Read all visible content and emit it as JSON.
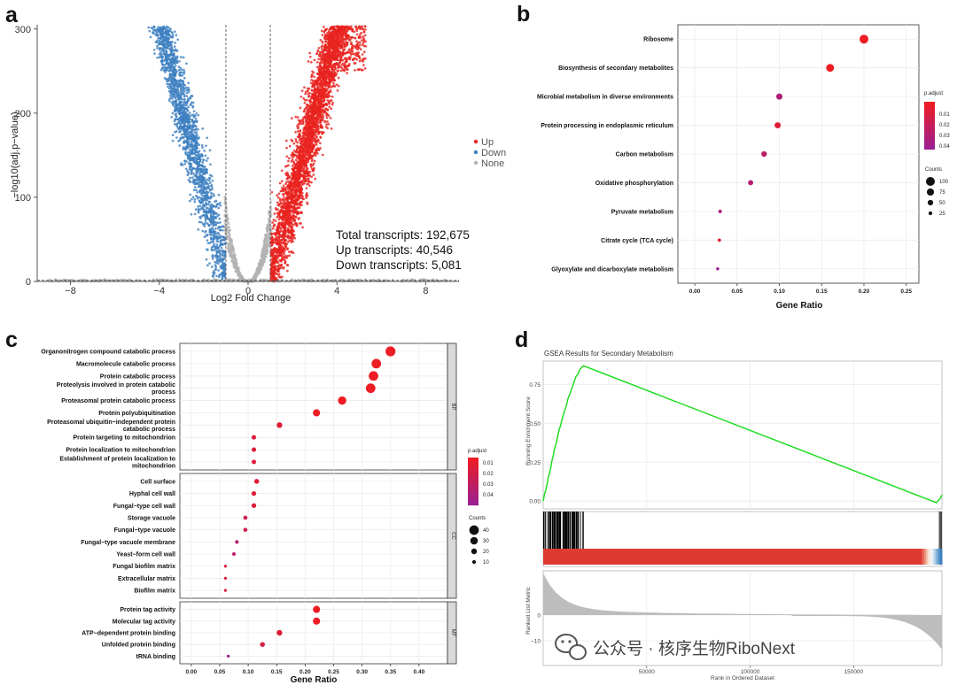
{
  "panels": {
    "a": "a",
    "b": "b",
    "c": "c",
    "d": "d"
  },
  "colors": {
    "up": "#e8231f",
    "down": "#3d7fc0",
    "none": "#b3b3b3",
    "padj_low": "#ee1c24",
    "padj_high": "#9b1f8f",
    "gsea_line": "#22dd22",
    "grid": "#ebebeb"
  },
  "chart_data": [
    {
      "id": "a",
      "type": "scatter",
      "subtype": "volcano",
      "title": "",
      "xlabel": "Log2 Fold Change",
      "ylabel": "−log10(adj.p−value)",
      "xlim": [
        -9.5,
        9.5
      ],
      "ylim": [
        0,
        305
      ],
      "xticks": [
        "−8",
        "−4",
        "0",
        "4",
        "8"
      ],
      "yticks": [
        "0",
        "100",
        "200",
        "300"
      ],
      "thresholds": {
        "log2fc": [
          -1,
          1
        ]
      },
      "legend": {
        "position": "right",
        "entries": [
          "Up",
          "Down",
          "None"
        ]
      },
      "annotation": [
        "Total transcripts: 192,675",
        "Up transcripts: 40,546",
        "Down transcripts: 5,081"
      ],
      "series": [
        {
          "name": "Up",
          "trend": [
            [
              1.0,
              0
            ],
            [
              1.5,
              40
            ],
            [
              2.0,
              95
            ],
            [
              2.5,
              150
            ],
            [
              3.0,
              205
            ],
            [
              3.5,
              255
            ],
            [
              4.0,
              300
            ]
          ]
        },
        {
          "name": "Down",
          "trend": [
            [
              -1.0,
              0
            ],
            [
              -1.5,
              40
            ],
            [
              -2.0,
              95
            ],
            [
              -2.5,
              145
            ],
            [
              -3.0,
              195
            ],
            [
              -3.5,
              250
            ],
            [
              -4.0,
              300
            ]
          ]
        },
        {
          "name": "None",
          "trend": [
            [
              -1.0,
              0
            ],
            [
              0,
              0
            ],
            [
              1.0,
              0
            ]
          ]
        }
      ]
    },
    {
      "id": "b",
      "type": "scatter",
      "subtype": "dotplot",
      "title": "",
      "xlabel": "Gene Ratio",
      "xlim": [
        -0.02,
        0.265
      ],
      "xticks": [
        "0.00",
        "0.05",
        "0.10",
        "0.15",
        "0.20",
        "0.25"
      ],
      "categories": [
        "Ribosome",
        "Biosynthesis of secondary metabolites",
        "Microbial metabolism in diverse environments",
        "Protein processing in endoplasmic reticulum",
        "Carbon metabolism",
        "Oxidative phosphorylation",
        "Pyruvate metabolism",
        "Citrate cycle (TCA cycle)",
        "Glyoxylate and dicarboxylate metabolism"
      ],
      "gene_ratio": [
        0.2,
        0.16,
        0.1,
        0.098,
        0.082,
        0.066,
        0.03,
        0.029,
        0.027
      ],
      "counts": [
        100,
        85,
        60,
        60,
        52,
        45,
        20,
        18,
        15
      ],
      "p_adjust": [
        0.0,
        0.0,
        0.04,
        0.01,
        0.03,
        0.035,
        0.04,
        0.01,
        0.05
      ],
      "legend": {
        "color_title": "p.adjust",
        "color_ticks": [
          "0.01",
          "0.02",
          "0.03",
          "0.04"
        ],
        "size_title": "Counts",
        "size_ticks": [
          "100",
          "75",
          "50",
          "25"
        ]
      }
    },
    {
      "id": "c",
      "type": "scatter",
      "subtype": "dotplot-faceted",
      "title": "",
      "xlabel": "Gene Ratio",
      "xlim": [
        -0.02,
        0.45
      ],
      "xticks": [
        "0.00",
        "0.05",
        "0.10",
        "0.15",
        "0.20",
        "0.25",
        "0.30",
        "0.35",
        "0.40"
      ],
      "facets": [
        {
          "label": "BP",
          "categories": [
            "Organonitrogen compound catabolic process",
            "Macromolecule catabolic process",
            "Protein catabolic process",
            "Proteolysis involved in protein catabolic process",
            "Proteasomal protein catabolic process",
            "Protein polyubiquitination",
            "Proteasomal ubiquitin−independent protein catabolic process",
            "Protein targeting to mitochondrion",
            "Protein localization to mitochondrion",
            "Establishment of protein localization to mitochondrion"
          ],
          "gene_ratio": [
            0.35,
            0.325,
            0.32,
            0.315,
            0.265,
            0.22,
            0.155,
            0.11,
            0.11,
            0.11
          ],
          "counts": [
            42,
            40,
            40,
            40,
            34,
            28,
            20,
            14,
            14,
            14
          ],
          "p_adjust": [
            0.0,
            0.0,
            0.0,
            0.0,
            0.0,
            0.0,
            0.01,
            0.01,
            0.01,
            0.01
          ]
        },
        {
          "label": "CC",
          "categories": [
            "Cell surface",
            "Hyphal cell wall",
            "Fungal−type cell wall",
            "Storage vacuole",
            "Fungal−type vacuole",
            "Fungal−type vacuole membrane",
            "Yeast−form cell wall",
            "Fungal biofilm matrix",
            "Extracellular matrix",
            "Biofilm matrix"
          ],
          "gene_ratio": [
            0.115,
            0.11,
            0.11,
            0.095,
            0.095,
            0.08,
            0.075,
            0.06,
            0.06,
            0.06
          ],
          "counts": [
            16,
            15,
            15,
            12,
            12,
            10,
            9,
            6,
            6,
            6
          ],
          "p_adjust": [
            0.01,
            0.01,
            0.01,
            0.02,
            0.02,
            0.035,
            0.03,
            0.01,
            0.01,
            0.01
          ]
        },
        {
          "label": "MF",
          "categories": [
            "Protein tag activity",
            "Molecular tag activity",
            "ATP−dependent protein binding",
            "Unfolded protein binding",
            "tRNA binding"
          ],
          "gene_ratio": [
            0.22,
            0.22,
            0.155,
            0.125,
            0.065
          ],
          "counts": [
            28,
            28,
            20,
            16,
            6
          ],
          "p_adjust": [
            0.0,
            0.0,
            0.01,
            0.015,
            0.05
          ]
        }
      ],
      "legend": {
        "color_title": "p.adjust",
        "color_ticks": [
          "0.01",
          "0.02",
          "0.03",
          "0.04"
        ],
        "size_title": "Counts",
        "size_ticks": [
          "40",
          "30",
          "20",
          "10"
        ]
      }
    },
    {
      "id": "d",
      "type": "line",
      "subtype": "gsea",
      "title": "GSEA Results for Secondary Metabolism",
      "xlabel": "Rank in Ordered Dataset",
      "ylabel_top": "Running Enrichment Score",
      "ylabel_bottom": "Ranked List Metric",
      "xlim": [
        0,
        192675
      ],
      "xticks": [
        "50000",
        "100000",
        "150000"
      ],
      "es_ylim": [
        -0.05,
        0.9
      ],
      "es_yticks": [
        "0.00",
        "0.25",
        "0.50",
        "0.75"
      ],
      "metric_yticks": [
        "0",
        "−10"
      ],
      "x": [
        0,
        3000,
        6000,
        9000,
        12000,
        15000,
        18000,
        19500,
        190000,
        192000,
        192675
      ],
      "es": [
        0.0,
        0.18,
        0.36,
        0.52,
        0.66,
        0.77,
        0.85,
        0.87,
        -0.01,
        0.02,
        0.04
      ]
    }
  ],
  "watermark": {
    "text": "公众号 · 核序生物RiboNext"
  }
}
